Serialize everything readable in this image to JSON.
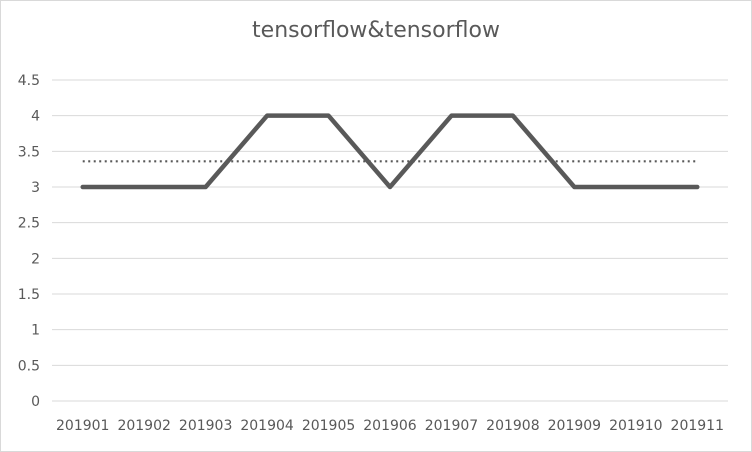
{
  "chart_data": {
    "type": "line",
    "title": "tensorflow&tensorflow",
    "categories": [
      "201901",
      "201902",
      "201903",
      "201904",
      "201905",
      "201906",
      "201907",
      "201908",
      "201909",
      "201910",
      "201911"
    ],
    "series": [
      {
        "values": [
          3,
          3,
          3,
          4,
          4,
          3,
          4,
          4,
          3,
          3,
          3
        ],
        "color": "#595959",
        "style": "solid"
      },
      {
        "values": [
          3.36,
          3.36,
          3.36,
          3.36,
          3.36,
          3.36,
          3.36,
          3.36,
          3.36,
          3.36,
          3.36
        ],
        "color": "#595959",
        "style": "dotted"
      }
    ],
    "ylim": [
      0,
      4.5
    ],
    "yticks": [
      "0",
      "0.5",
      "1",
      "1.5",
      "2",
      "2.5",
      "3",
      "3.5",
      "4",
      "4.5"
    ],
    "grid": true,
    "legend": "none"
  }
}
